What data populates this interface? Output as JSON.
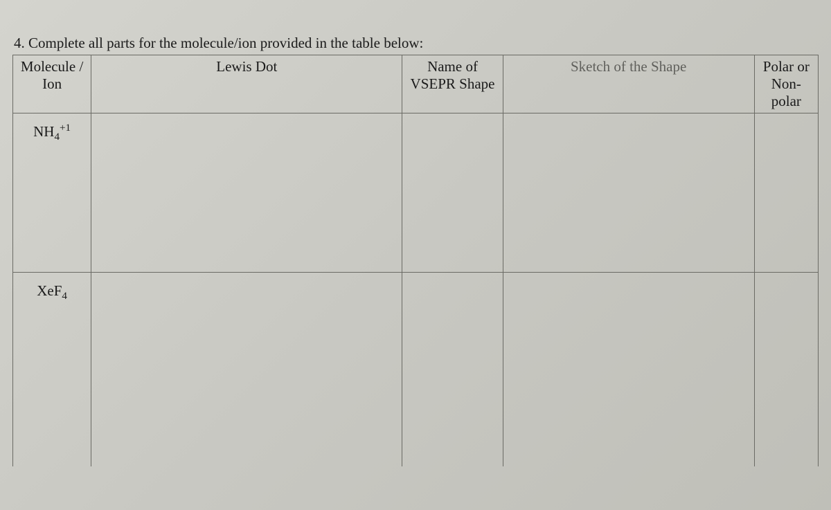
{
  "question": {
    "number": "4.",
    "text": "Complete all parts for the molecule/ion provided in the table below:"
  },
  "table": {
    "headers": {
      "molecule": "Molecule / Ion",
      "lewis": "Lewis Dot",
      "name": "Name of VSEPR Shape",
      "sketch": "Sketch of the Shape",
      "polar": "Polar or Non-polar"
    },
    "rows": [
      {
        "molecule_base": "NH",
        "molecule_sub": "4",
        "molecule_sup": "+1"
      },
      {
        "molecule_base": "XeF",
        "molecule_sub": "4",
        "molecule_sup": ""
      }
    ]
  },
  "styling": {
    "background_gradient": [
      "#d4d4ce",
      "#c8c8c2",
      "#bfbfb8"
    ],
    "border_color": "#6a6a64",
    "text_color": "#1a1a1a",
    "font_family": "Times New Roman",
    "base_font_size": 21,
    "column_widths_pct": [
      9.2,
      36.5,
      11.8,
      29.5,
      7.5
    ],
    "header_row_height": 110,
    "body_row_height": 230
  }
}
